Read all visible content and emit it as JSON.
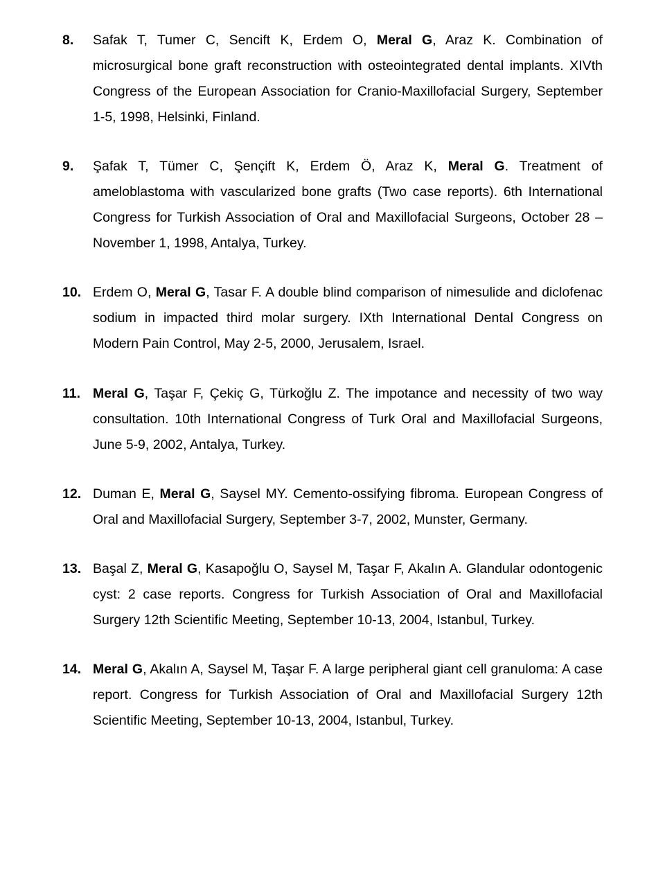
{
  "refs": [
    {
      "num": "8.",
      "parts": [
        {
          "t": "Safak T, Tumer C, Sencift K, Erdem O, ",
          "b": false
        },
        {
          "t": "Meral G",
          "b": true
        },
        {
          "t": ", Araz K. Combination of microsurgical bone graft reconstruction with osteointegrated dental implants. XIVth Congress of the European Association for Cranio-Maxillofacial Surgery, September 1-5, 1998, Helsinki, Finland.",
          "b": false
        }
      ]
    },
    {
      "num": "9.",
      "parts": [
        {
          "t": "Şafak T, Tümer C, Şençift K, Erdem Ö, Araz K, ",
          "b": false
        },
        {
          "t": "Meral G",
          "b": true
        },
        {
          "t": ". Treatment of ameloblastoma with vascularized bone grafts (Two case reports). 6th International Congress for Turkish Association of Oral and Maxillofacial Surgeons, October 28 – November 1, 1998, Antalya, Turkey.",
          "b": false
        }
      ]
    },
    {
      "num": "10.",
      "parts": [
        {
          "t": "Erdem O, ",
          "b": false
        },
        {
          "t": "Meral G",
          "b": true
        },
        {
          "t": ", Tasar F. A double blind comparison of nimesulide and diclofenac sodium in impacted third molar surgery. IXth International Dental Congress on Modern Pain Control, May 2-5, 2000, Jerusalem, Israel.",
          "b": false
        }
      ]
    },
    {
      "num": "11.",
      "parts": [
        {
          "t": "Meral G",
          "b": true
        },
        {
          "t": ", Taşar F, Çekiç G, Türkoğlu Z. The impotance and necessity of two way consultation. 10th International Congress of Turk Oral and Maxillofacial Surgeons, June 5-9, 2002, Antalya, Turkey.",
          "b": false
        }
      ]
    },
    {
      "num": "12.",
      "parts": [
        {
          "t": "Duman E, ",
          "b": false
        },
        {
          "t": "Meral G",
          "b": true
        },
        {
          "t": ", Saysel MY. Cemento-ossifying fibroma. European Congress of Oral and Maxillofacial Surgery, September 3-7, 2002, Munster, Germany.",
          "b": false
        }
      ]
    },
    {
      "num": "13.",
      "parts": [
        {
          "t": "Başal Z, ",
          "b": false
        },
        {
          "t": "Meral G",
          "b": true
        },
        {
          "t": ", Kasapoğlu O, Saysel M, Taşar F, Akalın A. Glandular odontogenic cyst: 2 case reports. Congress for Turkish Association of Oral and Maxillofacial Surgery 12th Scientific Meeting, September 10-13, 2004, Istanbul, Turkey.",
          "b": false
        }
      ]
    },
    {
      "num": "14.",
      "parts": [
        {
          "t": "Meral G",
          "b": true
        },
        {
          "t": ", Akalın A, Saysel M, Taşar F. A large peripheral giant cell granuloma: A case report. Congress for Turkish Association of Oral and Maxillofacial Surgery 12th Scientific Meeting, September 10-13, 2004, Istanbul, Turkey.",
          "b": false
        }
      ]
    }
  ]
}
